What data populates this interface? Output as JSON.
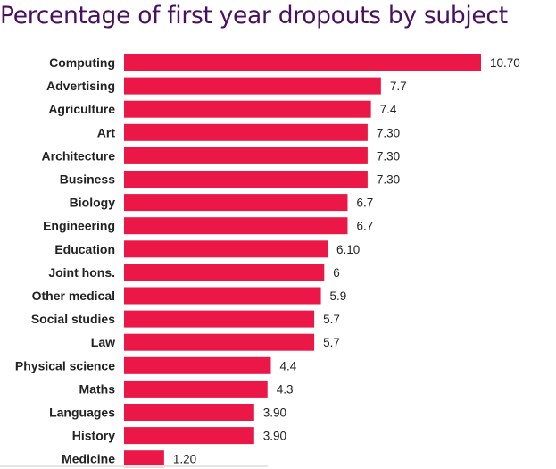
{
  "colors": {
    "bar": "#eb1747",
    "title": "#4a1060",
    "label": "#222222"
  },
  "chart_data": {
    "type": "bar",
    "orientation": "horizontal",
    "title": "Percentage of first year dropouts by subject",
    "xlabel": "",
    "ylabel": "",
    "xlim": [
      0,
      10.7
    ],
    "grid": false,
    "categories": [
      "Computing",
      "Advertising",
      "Agriculture",
      "Art",
      "Architecture",
      "Business",
      "Biology",
      "Engineering",
      "Education",
      "Joint hons.",
      "Other medical",
      "Social studies",
      "Law",
      "Physical science",
      "Maths",
      "Languages",
      "History",
      "Medicine"
    ],
    "values": [
      10.7,
      7.7,
      7.4,
      7.3,
      7.3,
      7.3,
      6.7,
      6.7,
      6.1,
      6,
      5.9,
      5.7,
      5.7,
      4.4,
      4.3,
      3.9,
      3.9,
      1.2
    ],
    "value_labels": [
      "10.70",
      "7.7",
      "7.4",
      "7.30",
      "7.30",
      "7.30",
      "6.7",
      "6.7",
      "6.10",
      "6",
      "5.9",
      "5.7",
      "5.7",
      "4.4",
      "4.3",
      "3.90",
      "3.90",
      "1.20"
    ]
  }
}
